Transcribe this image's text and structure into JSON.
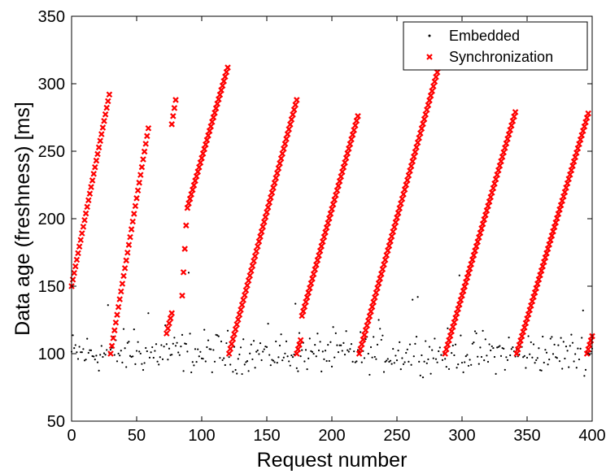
{
  "chart_data": {
    "type": "scatter",
    "xlabel": "Request number",
    "ylabel": "Data age (freshness) [ms]",
    "xlim": [
      0,
      400
    ],
    "ylim": [
      50,
      350
    ],
    "xticks": [
      0,
      50,
      100,
      150,
      200,
      250,
      300,
      350,
      400
    ],
    "yticks": [
      50,
      100,
      150,
      200,
      250,
      300,
      350
    ],
    "grid": false,
    "legend_position": "top-right",
    "series": [
      {
        "name": "Embedded",
        "marker": "dot",
        "color": "#000000",
        "description": "one point per request, scattered 82-125 ms with a few outliers up to ~160 ms",
        "y_range": [
          82,
          125
        ],
        "outliers": [
          [
            28,
            136
          ],
          [
            48,
            118
          ],
          [
            59,
            130
          ],
          [
            72,
            121
          ],
          [
            90,
            160
          ],
          [
            172,
            137
          ],
          [
            236,
            125
          ],
          [
            262,
            140
          ],
          [
            266,
            142
          ],
          [
            298,
            158
          ],
          [
            393,
            132
          ]
        ]
      },
      {
        "name": "Synchronization",
        "marker": "x",
        "color": "#ff0000",
        "segments": [
          {
            "x": [
              0,
              29
            ],
            "y": [
              150,
              292
            ]
          },
          {
            "x": [
              30,
              59
            ],
            "y": [
              100,
              267
            ]
          },
          {
            "x": [
              73,
              77
            ],
            "y": [
              115,
              130
            ]
          },
          {
            "x": [
              77,
              80
            ],
            "y": [
              270,
              288
            ]
          },
          {
            "x": [
              85,
              88
            ],
            "y": [
              143,
              195
            ]
          },
          {
            "x": [
              89,
              120
            ],
            "y": [
              208,
              312
            ]
          },
          {
            "x": [
              121,
              173
            ],
            "y": [
              100,
              288
            ]
          },
          {
            "x": [
              173,
              176
            ],
            "y": [
              100,
              110
            ]
          },
          {
            "x": [
              177,
              220
            ],
            "y": [
              128,
              276
            ]
          },
          {
            "x": [
              221,
              282
            ],
            "y": [
              100,
              312
            ]
          },
          {
            "x": [
              287,
              341
            ],
            "y": [
              100,
              279
            ]
          },
          {
            "x": [
              342,
              397
            ],
            "y": [
              100,
              278
            ]
          },
          {
            "x": [
              396,
              400
            ],
            "y": [
              100,
              113
            ]
          }
        ]
      }
    ]
  }
}
